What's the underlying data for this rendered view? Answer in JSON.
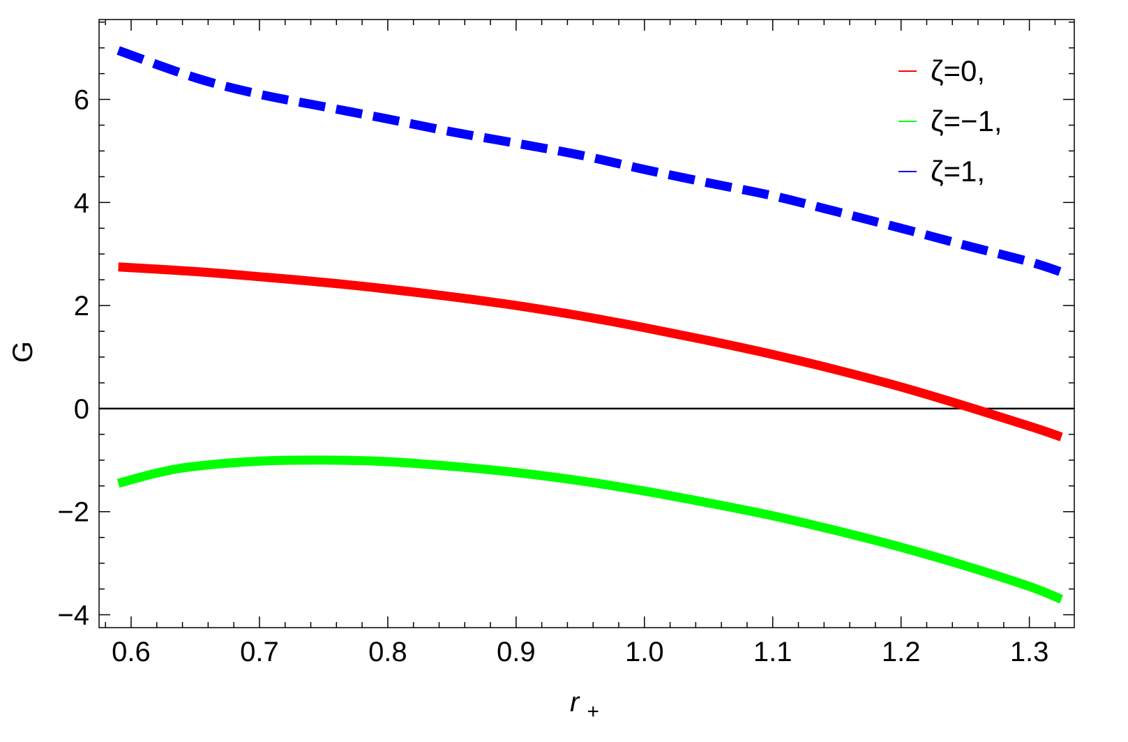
{
  "chart_data": {
    "type": "line",
    "xlabel": "r",
    "xlabel_subscript": "+",
    "ylabel": "G",
    "xlim": [
      0.575,
      1.335
    ],
    "ylim": [
      -4.25,
      7.55
    ],
    "x_ticks": [
      "0.6",
      "0.7",
      "0.8",
      "0.9",
      "1.0",
      "1.1",
      "1.2",
      "1.3"
    ],
    "x_tick_values": [
      0.6,
      0.7,
      0.8,
      0.9,
      1.0,
      1.1,
      1.2,
      1.3
    ],
    "y_ticks": [
      "−4",
      "−2",
      "0",
      "2",
      "4",
      "6"
    ],
    "y_tick_values": [
      -4,
      -2,
      0,
      2,
      4,
      6
    ],
    "grid": false,
    "zero_line": true,
    "legend_position": "top-right",
    "series": [
      {
        "name": "ζ=0,",
        "color": "#ff0000",
        "dash": "solid",
        "x": [
          0.59,
          0.65,
          0.7,
          0.75,
          0.8,
          0.85,
          0.9,
          0.95,
          1.0,
          1.05,
          1.1,
          1.15,
          1.2,
          1.25,
          1.3,
          1.325
        ],
        "y": [
          2.75,
          2.66,
          2.56,
          2.45,
          2.32,
          2.17,
          2.0,
          1.8,
          1.57,
          1.32,
          1.05,
          0.75,
          0.42,
          0.05,
          -0.34,
          -0.55
        ]
      },
      {
        "name": "ζ=−1,",
        "color": "#00ff00",
        "dash": "solid",
        "x": [
          0.59,
          0.62,
          0.65,
          0.7,
          0.75,
          0.8,
          0.85,
          0.9,
          0.95,
          1.0,
          1.05,
          1.1,
          1.15,
          1.2,
          1.25,
          1.3,
          1.325
        ],
        "y": [
          -1.45,
          -1.25,
          -1.12,
          -1.02,
          -1.0,
          -1.03,
          -1.12,
          -1.24,
          -1.4,
          -1.6,
          -1.83,
          -2.08,
          -2.37,
          -2.69,
          -3.05,
          -3.45,
          -3.7
        ]
      },
      {
        "name": "ζ=1,",
        "color": "#0000ff",
        "dash": "dashed",
        "x": [
          0.59,
          0.65,
          0.7,
          0.75,
          0.8,
          0.85,
          0.9,
          0.95,
          1.0,
          1.05,
          1.1,
          1.15,
          1.2,
          1.25,
          1.3,
          1.325
        ],
        "y": [
          6.95,
          6.42,
          6.1,
          5.86,
          5.62,
          5.37,
          5.15,
          4.92,
          4.64,
          4.38,
          4.13,
          3.82,
          3.5,
          3.17,
          2.85,
          2.65
        ]
      }
    ]
  }
}
